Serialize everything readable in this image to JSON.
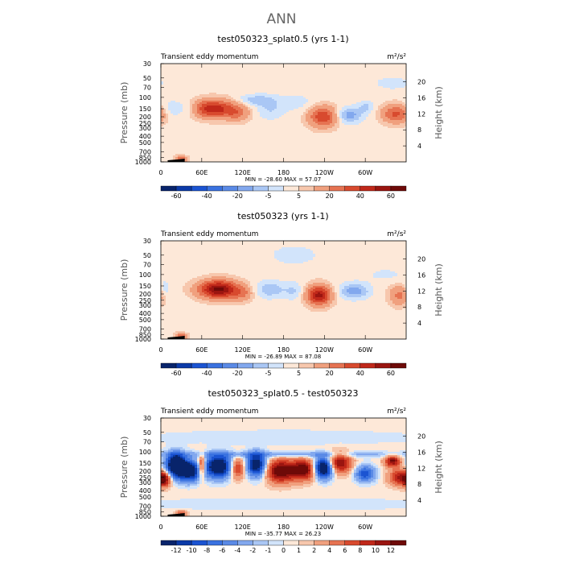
{
  "page": {
    "title": "ANN"
  },
  "chart_data": [
    {
      "type": "heatmap",
      "title": "test050323_splat0.5 (yrs 1-1)",
      "left_label": "Transient eddy momentum",
      "units": "m²/s²",
      "xlabel": "",
      "ylabel": "Pressure (mb)",
      "ylabel_right": "Height (km)",
      "x_ticks": [
        "0",
        "60E",
        "120E",
        "180",
        "120W",
        "60W"
      ],
      "x_tick_values": [
        0,
        60,
        120,
        180,
        240,
        300
      ],
      "xlim": [
        0,
        360
      ],
      "y_ticks": [
        "30",
        "50",
        "70",
        "100",
        "150",
        "200",
        "250",
        "300",
        "400",
        "500",
        "700",
        "850",
        "1000"
      ],
      "y_tick_values": [
        30,
        50,
        70,
        100,
        150,
        200,
        250,
        300,
        400,
        500,
        700,
        850,
        1000
      ],
      "ylim": [
        1000,
        30
      ],
      "height_ticks": [
        "4",
        "8",
        "12",
        "16",
        "20"
      ],
      "height_tick_values": [
        4,
        8,
        12,
        16,
        20
      ],
      "min_max_text": "MIN = -28.60   MAX =  57.07",
      "min": -28.6,
      "max": 57.07,
      "levels": [
        -70,
        -60,
        -50,
        -40,
        -30,
        -20,
        -10,
        -5,
        0,
        5,
        10,
        20,
        30,
        40,
        50,
        60,
        70
      ],
      "colorbar_labels": [
        "-60",
        "-40",
        "-20",
        "-5",
        "5",
        "20",
        "40",
        "60"
      ],
      "colorbar_label_edges": [
        1,
        3,
        5,
        7,
        9,
        11,
        13,
        15
      ],
      "background_value": 3,
      "blobs": [
        {
          "lon": 18,
          "p": 150,
          "lon_w": 14,
          "lp_w": 0.2,
          "v": -9
        },
        {
          "lon": 45,
          "p": 150,
          "lon_w": 10,
          "lp_w": 0.22,
          "v": -9
        },
        {
          "lon": 76,
          "p": 150,
          "lon_w": 22,
          "lp_w": 0.22,
          "v": 45
        },
        {
          "lon": 112,
          "p": 175,
          "lon_w": 12,
          "lp_w": 0.2,
          "v": 18
        },
        {
          "lon": 138,
          "p": 110,
          "lon_w": 18,
          "lp_w": 0.14,
          "v": -11
        },
        {
          "lon": 160,
          "p": 150,
          "lon_w": 14,
          "lp_w": 0.28,
          "v": -8
        },
        {
          "lon": 238,
          "p": 200,
          "lon_w": 14,
          "lp_w": 0.25,
          "v": 36
        },
        {
          "lon": 276,
          "p": 190,
          "lon_w": 14,
          "lp_w": 0.2,
          "v": -16
        },
        {
          "lon": 301,
          "p": 140,
          "lon_w": 9,
          "lp_w": 0.15,
          "v": -9
        },
        {
          "lon": 345,
          "p": 180,
          "lon_w": 14,
          "lp_w": 0.22,
          "v": 30
        },
        {
          "lon": 340,
          "p": 60,
          "lon_w": 22,
          "lp_w": 0.2,
          "v": -5
        },
        {
          "lon": 200,
          "p": 120,
          "lon_w": 20,
          "lp_w": 0.25,
          "v": -5
        },
        {
          "lon": 30,
          "p": 900,
          "lon_w": 6,
          "lp_w": 0.08,
          "v": 25
        }
      ]
    },
    {
      "type": "heatmap",
      "title": "test050323 (yrs 1-1)",
      "left_label": "Transient eddy momentum",
      "units": "m²/s²",
      "xlabel": "",
      "ylabel": "Pressure (mb)",
      "ylabel_right": "Height (km)",
      "x_ticks": [
        "0",
        "60E",
        "120E",
        "180",
        "120W",
        "60W"
      ],
      "x_tick_values": [
        0,
        60,
        120,
        180,
        240,
        300
      ],
      "xlim": [
        0,
        360
      ],
      "y_ticks": [
        "30",
        "50",
        "70",
        "100",
        "150",
        "200",
        "250",
        "300",
        "400",
        "500",
        "700",
        "850",
        "1000"
      ],
      "y_tick_values": [
        30,
        50,
        70,
        100,
        150,
        200,
        250,
        300,
        400,
        500,
        700,
        850,
        1000
      ],
      "ylim": [
        1000,
        30
      ],
      "height_ticks": [
        "4",
        "8",
        "12",
        "16",
        "20"
      ],
      "height_tick_values": [
        4,
        8,
        12,
        16,
        20
      ],
      "min_max_text": "MIN = -26.89   MAX =  87.08",
      "min": -26.89,
      "max": 87.08,
      "levels": [
        -70,
        -60,
        -50,
        -40,
        -30,
        -20,
        -10,
        -5,
        0,
        5,
        10,
        20,
        30,
        40,
        50,
        60,
        70
      ],
      "colorbar_labels": [
        "-60",
        "-40",
        "-20",
        "-5",
        "5",
        "20",
        "40",
        "60"
      ],
      "colorbar_label_edges": [
        1,
        3,
        5,
        7,
        9,
        11,
        13,
        15
      ],
      "background_value": 3,
      "blobs": [
        {
          "lon": 5,
          "p": 170,
          "lon_w": 6,
          "lp_w": 0.2,
          "v": -8
        },
        {
          "lon": 85,
          "p": 170,
          "lon_w": 20,
          "lp_w": 0.22,
          "v": 60
        },
        {
          "lon": 120,
          "p": 200,
          "lon_w": 10,
          "lp_w": 0.18,
          "v": 15
        },
        {
          "lon": 160,
          "p": 170,
          "lon_w": 16,
          "lp_w": 0.22,
          "v": -12
        },
        {
          "lon": 195,
          "p": 180,
          "lon_w": 10,
          "lp_w": 0.22,
          "v": -8
        },
        {
          "lon": 232,
          "p": 210,
          "lon_w": 12,
          "lp_w": 0.24,
          "v": 50
        },
        {
          "lon": 284,
          "p": 180,
          "lon_w": 16,
          "lp_w": 0.2,
          "v": -16
        },
        {
          "lon": 350,
          "p": 210,
          "lon_w": 10,
          "lp_w": 0.24,
          "v": 20
        },
        {
          "lon": 195,
          "p": 50,
          "lon_w": 30,
          "lp_w": 0.3,
          "v": -5
        },
        {
          "lon": 330,
          "p": 100,
          "lon_w": 25,
          "lp_w": 0.2,
          "v": -4
        },
        {
          "lon": 30,
          "p": 900,
          "lon_w": 6,
          "lp_w": 0.08,
          "v": 25
        }
      ]
    },
    {
      "type": "heatmap",
      "title": "test050323_splat0.5 - test050323",
      "left_label": "Transient eddy momentum",
      "units": "m²/s²",
      "xlabel": "",
      "ylabel": "Pressure (mb)",
      "ylabel_right": "Height (km)",
      "x_ticks": [
        "0",
        "60E",
        "120E",
        "180",
        "120W",
        "60W"
      ],
      "x_tick_values": [
        0,
        60,
        120,
        180,
        240,
        300
      ],
      "xlim": [
        0,
        360
      ],
      "y_ticks": [
        "30",
        "50",
        "70",
        "100",
        "150",
        "200",
        "250",
        "300",
        "400",
        "500",
        "700",
        "850",
        "1000"
      ],
      "y_tick_values": [
        30,
        50,
        70,
        100,
        150,
        200,
        250,
        300,
        400,
        500,
        700,
        850,
        1000
      ],
      "ylim": [
        1000,
        30
      ],
      "height_ticks": [
        "4",
        "8",
        "12",
        "16",
        "20"
      ],
      "height_tick_values": [
        4,
        8,
        12,
        16,
        20
      ],
      "min_max_text": "MIN = -35.77   MAX =  26.23",
      "min": -35.77,
      "max": 26.23,
      "levels": [
        -14,
        -12,
        -10,
        -8,
        -6,
        -4,
        -2,
        -1,
        0,
        1,
        2,
        4,
        6,
        8,
        10,
        12,
        14
      ],
      "colorbar_labels": [
        "-12",
        "-10",
        "-8",
        "-6",
        "-4",
        "-2",
        "-1",
        "0",
        "1",
        "2",
        "4",
        "6",
        "8",
        "10",
        "12"
      ],
      "colorbar_label_edges": [
        1,
        2,
        3,
        4,
        5,
        6,
        7,
        8,
        9,
        10,
        11,
        12,
        13,
        14,
        15
      ],
      "background_value": 0.5,
      "blobs": [
        {
          "lon": 22,
          "p": 160,
          "lon_w": 10,
          "lp_w": 0.28,
          "v": -20
        },
        {
          "lon": 42,
          "p": 200,
          "lon_w": 12,
          "lp_w": 0.25,
          "v": -16
        },
        {
          "lon": 60,
          "p": 170,
          "lon_w": 4,
          "lp_w": 0.28,
          "v": 12
        },
        {
          "lon": 85,
          "p": 170,
          "lon_w": 14,
          "lp_w": 0.28,
          "v": -18
        },
        {
          "lon": 112,
          "p": 180,
          "lon_w": 8,
          "lp_w": 0.25,
          "v": 10
        },
        {
          "lon": 140,
          "p": 160,
          "lon_w": 10,
          "lp_w": 0.28,
          "v": -16
        },
        {
          "lon": 175,
          "p": 200,
          "lon_w": 14,
          "lp_w": 0.28,
          "v": 14
        },
        {
          "lon": 210,
          "p": 190,
          "lon_w": 14,
          "lp_w": 0.25,
          "v": 14
        },
        {
          "lon": 238,
          "p": 180,
          "lon_w": 10,
          "lp_w": 0.25,
          "v": -20
        },
        {
          "lon": 262,
          "p": 150,
          "lon_w": 12,
          "lp_w": 0.25,
          "v": 12
        },
        {
          "lon": 300,
          "p": 220,
          "lon_w": 10,
          "lp_w": 0.2,
          "v": -10
        },
        {
          "lon": 340,
          "p": 140,
          "lon_w": 8,
          "lp_w": 0.14,
          "v": 12
        },
        {
          "lon": 352,
          "p": 250,
          "lon_w": 12,
          "lp_w": 0.2,
          "v": 10
        },
        {
          "lon": 180,
          "p": 110,
          "lon_w": 150,
          "lp_w": 0.08,
          "v": -4
        },
        {
          "lon": 5,
          "p": 270,
          "lon_w": 6,
          "lp_w": 0.18,
          "v": 10
        },
        {
          "lon": 180,
          "p": 60,
          "lon_w": 140,
          "lp_w": 0.18,
          "v": -1.5
        },
        {
          "lon": 180,
          "p": 650,
          "lon_w": 160,
          "lp_w": 0.15,
          "v": -1.5
        },
        {
          "lon": 30,
          "p": 900,
          "lon_w": 6,
          "lp_w": 0.08,
          "v": 6
        }
      ]
    }
  ],
  "colors": {
    "palette": [
      "#08246b",
      "#0b3aa8",
      "#1b54d2",
      "#3a72e0",
      "#5a8ae6",
      "#82a8ee",
      "#aac7f5",
      "#d2e4fb",
      "#fde8d8",
      "#f7c7ad",
      "#f0a07e",
      "#e67352",
      "#d84a2e",
      "#c0281a",
      "#9a1510",
      "#6e0a08"
    ],
    "axis": "#000000",
    "terrain": "#000000"
  }
}
